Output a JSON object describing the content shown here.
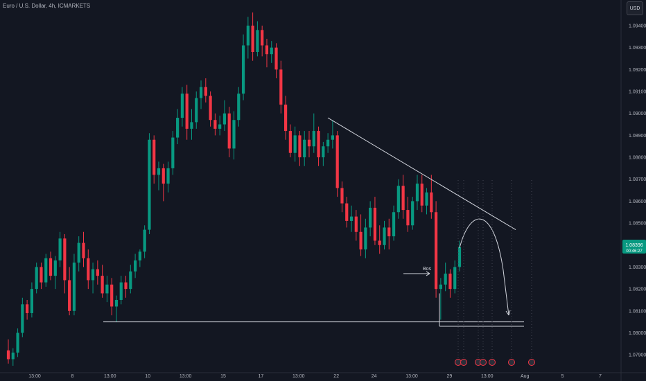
{
  "header": {
    "title": "Euro / U.S. Dollar, 4h, ICMARKETS",
    "currency": "USD"
  },
  "colors": {
    "background": "#131722",
    "up": "#089981",
    "down": "#f23645",
    "annotation": "#d1d4dc",
    "axis_text": "#b2b5be",
    "price_tag": "#089981"
  },
  "chart_data": {
    "type": "candlestick",
    "title": "Euro / U.S. Dollar, 4h, ICMARKETS",
    "xlabel": "",
    "ylabel": "",
    "ylim": [
      1.0785,
      1.0946
    ],
    "y_ticks": [
      "1.09400",
      "1.09300",
      "1.09200",
      "1.09100",
      "1.09000",
      "1.08900",
      "1.08800",
      "1.08700",
      "1.08600",
      "1.08500",
      "1.08400",
      "1.08300",
      "1.08200",
      "1.08100",
      "1.08000",
      "1.07900"
    ],
    "x_ticks": [
      "13:00",
      "8",
      "13:00",
      "10",
      "13:00",
      "15",
      "17",
      "13:00",
      "22",
      "24",
      "13:00",
      "29",
      "13:00",
      "Aug",
      "5",
      "7"
    ],
    "last_price": "1.08396",
    "last_price_sub": "00:46:27",
    "annotations": {
      "bos_label": "Bos",
      "support_level": 1.0805,
      "retest_level": 1.0803,
      "trendline_start": 1.0898,
      "trendline_end": 1.0847
    },
    "candles": [
      [
        1.0792,
        1.0797,
        1.0786,
        1.0788
      ],
      [
        1.0788,
        1.0793,
        1.0785,
        1.0791
      ],
      [
        1.0791,
        1.0802,
        1.0789,
        1.08
      ],
      [
        1.08,
        1.0816,
        1.0798,
        1.0813
      ],
      [
        1.0813,
        1.0815,
        1.0806,
        1.0809
      ],
      [
        1.0809,
        1.0823,
        1.0807,
        1.082
      ],
      [
        1.082,
        1.0832,
        1.0818,
        1.083
      ],
      [
        1.083,
        1.0832,
        1.082,
        1.0823
      ],
      [
        1.0823,
        1.0836,
        1.0821,
        1.0834
      ],
      [
        1.0834,
        1.0837,
        1.0824,
        1.0826
      ],
      [
        1.0826,
        1.0835,
        1.082,
        1.0833
      ],
      [
        1.0833,
        1.0846,
        1.083,
        1.0843
      ],
      [
        1.0843,
        1.0845,
        1.0818,
        1.0824
      ],
      [
        1.0824,
        1.083,
        1.0808,
        1.081
      ],
      [
        1.081,
        1.0836,
        1.0808,
        1.0832
      ],
      [
        1.0832,
        1.0844,
        1.0828,
        1.0841
      ],
      [
        1.0841,
        1.0846,
        1.083,
        1.0834
      ],
      [
        1.0834,
        1.0838,
        1.082,
        1.0824
      ],
      [
        1.0824,
        1.0832,
        1.0818,
        1.0829
      ],
      [
        1.0829,
        1.0833,
        1.0822,
        1.0826
      ],
      [
        1.0826,
        1.0831,
        1.0816,
        1.0818
      ],
      [
        1.0818,
        1.0826,
        1.0814,
        1.0822
      ],
      [
        1.0822,
        1.0825,
        1.0808,
        1.0812
      ],
      [
        1.0812,
        1.0817,
        1.0805,
        1.0815
      ],
      [
        1.0815,
        1.0826,
        1.0813,
        1.0823
      ],
      [
        1.0823,
        1.0826,
        1.0816,
        1.082
      ],
      [
        1.082,
        1.0831,
        1.0818,
        1.0828
      ],
      [
        1.0828,
        1.0836,
        1.0825,
        1.0833
      ],
      [
        1.0833,
        1.0838,
        1.083,
        1.0837
      ],
      [
        1.0837,
        1.0849,
        1.0834,
        1.0847
      ],
      [
        1.0847,
        1.0891,
        1.0845,
        1.0888
      ],
      [
        1.0888,
        1.089,
        1.0868,
        1.0872
      ],
      [
        1.0872,
        1.0878,
        1.0865,
        1.0875
      ],
      [
        1.0875,
        1.0877,
        1.086,
        1.0868
      ],
      [
        1.0868,
        1.0878,
        1.0864,
        1.0875
      ],
      [
        1.0875,
        1.0892,
        1.0872,
        1.0889
      ],
      [
        1.0889,
        1.0902,
        1.0886,
        1.0898
      ],
      [
        1.0898,
        1.0912,
        1.0894,
        1.0909
      ],
      [
        1.0909,
        1.0913,
        1.0888,
        1.0893
      ],
      [
        1.0893,
        1.0902,
        1.0888,
        1.0896
      ],
      [
        1.0896,
        1.091,
        1.0893,
        1.0907
      ],
      [
        1.0907,
        1.0915,
        1.0902,
        1.0912
      ],
      [
        1.0912,
        1.0916,
        1.0905,
        1.0908
      ],
      [
        1.0908,
        1.091,
        1.0894,
        1.0897
      ],
      [
        1.0897,
        1.09,
        1.089,
        1.0893
      ],
      [
        1.0893,
        1.0899,
        1.089,
        1.0895
      ],
      [
        1.0895,
        1.0906,
        1.0892,
        1.09
      ],
      [
        1.09,
        1.0903,
        1.088,
        1.0884
      ],
      [
        1.0884,
        1.0901,
        1.0879,
        1.0897
      ],
      [
        1.0897,
        1.0912,
        1.0894,
        1.0909
      ],
      [
        1.0909,
        1.0936,
        1.0906,
        1.0931
      ],
      [
        1.0931,
        1.0944,
        1.0925,
        1.094
      ],
      [
        1.094,
        1.0946,
        1.0924,
        1.0928
      ],
      [
        1.0928,
        1.0942,
        1.0926,
        1.0938
      ],
      [
        1.0938,
        1.094,
        1.0926,
        1.0931
      ],
      [
        1.0931,
        1.0934,
        1.0921,
        1.0927
      ],
      [
        1.0927,
        1.0933,
        1.0923,
        1.093
      ],
      [
        1.093,
        1.0932,
        1.0916,
        1.092
      ],
      [
        1.092,
        1.0924,
        1.09,
        1.0904
      ],
      [
        1.0904,
        1.0908,
        1.0888,
        1.0892
      ],
      [
        1.0892,
        1.0895,
        1.088,
        1.0882
      ],
      [
        1.0882,
        1.0894,
        1.0878,
        1.089
      ],
      [
        1.089,
        1.0892,
        1.0876,
        1.088
      ],
      [
        1.088,
        1.0892,
        1.0876,
        1.0888
      ],
      [
        1.0888,
        1.0892,
        1.088,
        1.0885
      ],
      [
        1.0885,
        1.09,
        1.0882,
        1.0892
      ],
      [
        1.0892,
        1.0894,
        1.0876,
        1.088
      ],
      [
        1.088,
        1.0887,
        1.0876,
        1.0885
      ],
      [
        1.0885,
        1.0891,
        1.0882,
        1.0888
      ],
      [
        1.0888,
        1.0897,
        1.0884,
        1.089
      ],
      [
        1.089,
        1.0892,
        1.0862,
        1.0866
      ],
      [
        1.0866,
        1.0869,
        1.0855,
        1.0859
      ],
      [
        1.0859,
        1.0862,
        1.0848,
        1.0851
      ],
      [
        1.0851,
        1.0858,
        1.0846,
        1.0853
      ],
      [
        1.0853,
        1.0856,
        1.0842,
        1.0846
      ],
      [
        1.0846,
        1.0854,
        1.0835,
        1.0838
      ],
      [
        1.0838,
        1.0852,
        1.0834,
        1.0848
      ],
      [
        1.0848,
        1.086,
        1.0844,
        1.0857
      ],
      [
        1.0857,
        1.0862,
        1.084,
        1.0842
      ],
      [
        1.0842,
        1.0849,
        1.0836,
        1.084
      ],
      [
        1.084,
        1.0851,
        1.0838,
        1.0848
      ],
      [
        1.0848,
        1.0852,
        1.0838,
        1.0844
      ],
      [
        1.0844,
        1.0858,
        1.0842,
        1.0855
      ],
      [
        1.0855,
        1.087,
        1.0852,
        1.0867
      ],
      [
        1.0867,
        1.0872,
        1.0852,
        1.0856
      ],
      [
        1.0856,
        1.0862,
        1.0846,
        1.0849
      ],
      [
        1.0849,
        1.0862,
        1.0847,
        1.086
      ],
      [
        1.086,
        1.0872,
        1.0856,
        1.0868
      ],
      [
        1.0868,
        1.0872,
        1.0855,
        1.0858
      ],
      [
        1.0858,
        1.0866,
        1.0854,
        1.0864
      ],
      [
        1.0864,
        1.0872,
        1.0852,
        1.0855
      ],
      [
        1.0855,
        1.086,
        1.0816,
        1.082
      ],
      [
        1.082,
        1.0825,
        1.0806,
        1.0822
      ],
      [
        1.0822,
        1.0832,
        1.0819,
        1.0827
      ],
      [
        1.0827,
        1.0829,
        1.0816,
        1.082
      ],
      [
        1.082,
        1.0833,
        1.0818,
        1.083
      ],
      [
        1.083,
        1.0842,
        1.0828,
        1.0839
      ]
    ],
    "events_label_count": 7
  }
}
